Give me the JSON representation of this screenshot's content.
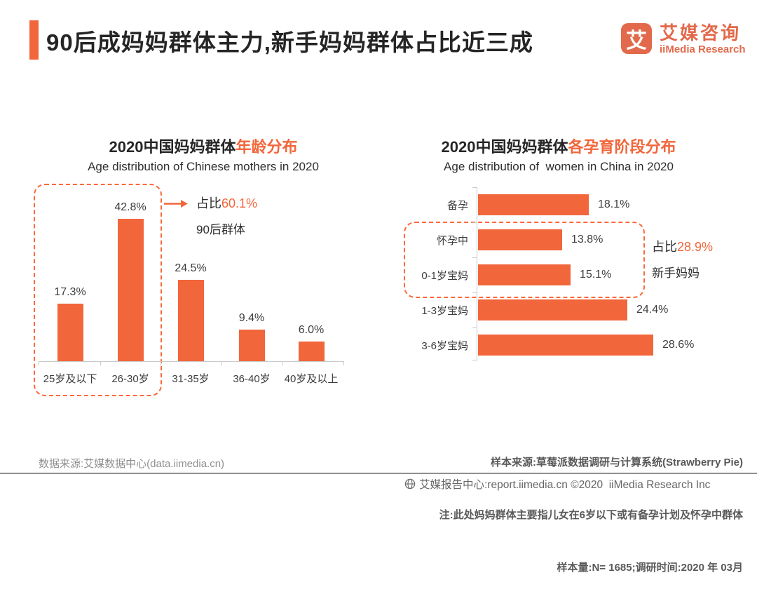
{
  "page": {
    "background": "#ffffff",
    "accent_orange": "#F2663B",
    "dash_orange": "#FA6A3A"
  },
  "header": {
    "title": "90后成妈妈群体主力,新手妈妈群体占比近三成",
    "logo": {
      "glyph": "艾",
      "name_cn": "艾媒咨询",
      "name_en": "iiMedia Research",
      "color": "#E2694B"
    }
  },
  "chart_data": [
    {
      "type": "bar",
      "orientation": "vertical",
      "title_black": "2020中国妈妈群体",
      "title_orange": "年龄分布",
      "subtitle": "Age distribution of Chinese mothers in 2020",
      "categories": [
        "25岁及以下",
        "26-30岁",
        "31-35岁",
        "36-40岁",
        "40岁及以上"
      ],
      "values": [
        17.3,
        42.8,
        24.5,
        9.4,
        6.0
      ],
      "labels": [
        "17.3%",
        "42.8%",
        "24.5%",
        "9.4%",
        "6.0%"
      ],
      "ylim": [
        0,
        45
      ],
      "grid": false,
      "bar_color": "#F2663B",
      "annotation": {
        "prefix": "占比",
        "highlight": "60.1%",
        "caption": "90后群体",
        "boxed_categories": [
          "25岁及以下",
          "26-30岁"
        ]
      }
    },
    {
      "type": "bar",
      "orientation": "horizontal",
      "title_black": "2020中国妈妈群体",
      "title_orange": "各孕育阶段分布",
      "subtitle": "Age distribution of  women in China in 2020",
      "categories": [
        "备孕",
        "怀孕中",
        "0-1岁宝妈",
        "1-3岁宝妈",
        "3-6岁宝妈"
      ],
      "values": [
        18.1,
        13.8,
        15.1,
        24.4,
        28.6
      ],
      "labels": [
        "18.1%",
        "13.8%",
        "15.1%",
        "24.4%",
        "28.6%"
      ],
      "xlim": [
        0,
        30
      ],
      "grid": false,
      "bar_color": "#F2663B",
      "annotation": {
        "prefix": "占比",
        "highlight": "28.9%",
        "caption": "新手妈妈",
        "boxed_categories": [
          "怀孕中",
          "0-1岁宝妈"
        ]
      }
    }
  ],
  "footnotes": {
    "right_lines": [
      "样本来源:草莓派数据调研与计算系统(Strawberry Pie)",
      "注:此处妈妈群体主要指儿女在6岁以下或有备孕计划及怀孕中群体",
      "样本量:N= 1685;调研时间:2020 年 03月"
    ],
    "left_source": "数据来源:艾媒数据中心(data.iimedia.cn)"
  },
  "footer_bar": {
    "icon": "globe-icon",
    "text": "艾媒报告中心:report.iimedia.cn ©2020  iiMedia Research Inc"
  }
}
